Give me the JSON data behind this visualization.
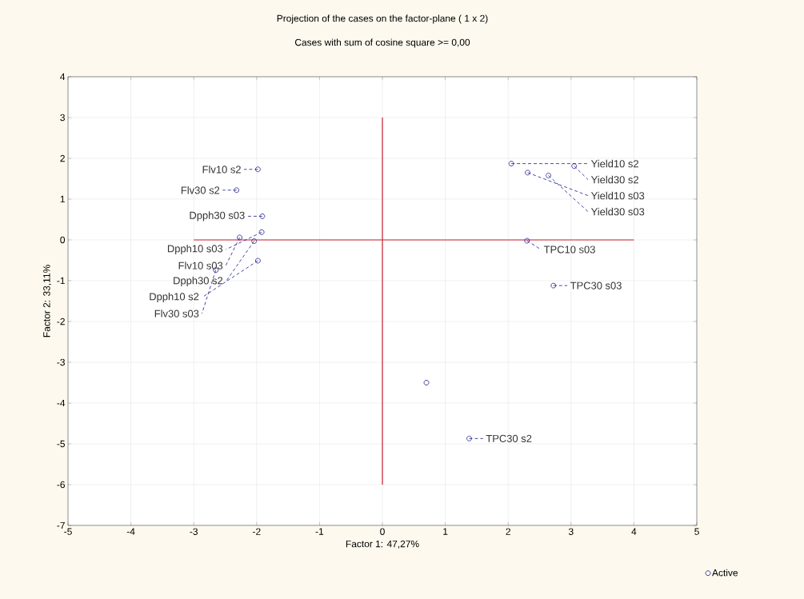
{
  "chart_data": {
    "type": "scatter",
    "title": "Projection of the cases on the factor-plane (  1 x   2)",
    "subtitle": "Cases with sum of cosine square >=  0,00",
    "xlabel": "Factor 1: 47,27%",
    "ylabel": "Factor 2: 33,11%",
    "series": [
      {
        "name": "Active",
        "color": "#1a1a8c",
        "x": [
          -1.98,
          -2.32,
          -1.91,
          -1.92,
          -2.27,
          -2.04,
          -1.98,
          -2.65,
          2.05,
          2.31,
          2.64,
          3.05,
          2.3,
          2.72,
          0.7,
          1.38
        ],
        "values": [
          1.73,
          1.22,
          0.58,
          0.19,
          0.06,
          -0.03,
          -0.51,
          -0.74,
          1.87,
          1.65,
          1.58,
          1.81,
          -0.02,
          -1.12,
          -3.5,
          -4.87
        ]
      },
      {
        "type": "line",
        "marker": "none",
        "color": "#cc2030",
        "x": [
          -3,
          4
        ],
        "values": [
          0,
          0
        ]
      },
      {
        "type": "line",
        "marker": "none",
        "color": "#cc2030",
        "x": [
          0,
          0
        ],
        "values": [
          -6,
          3
        ]
      }
    ],
    "annotations": [
      {
        "text": "Flv10 s2",
        "x": -1.98,
        "y": 1.73
      },
      {
        "text": "Flv30 s2",
        "x": -2.32,
        "y": 1.22
      },
      {
        "text": "Dpph30 s03",
        "x": -1.91,
        "y": 0.58
      },
      {
        "text": "Dpph10 s03",
        "x": -1.92,
        "y": 0.19
      },
      {
        "text": "Flv10 s03",
        "x": -2.27,
        "y": 0.06
      },
      {
        "text": "Dpph30 s2",
        "x": -2.04,
        "y": -0.03
      },
      {
        "text": "Dpph10 s2",
        "x": -1.98,
        "y": -0.51
      },
      {
        "text": "Flv30 s03",
        "x": -2.65,
        "y": -0.74
      },
      {
        "text": "Yield10 s2",
        "x": 2.05,
        "y": 1.87
      },
      {
        "text": "Yield10 s03",
        "x": 2.31,
        "y": 1.65
      },
      {
        "text": "Yield30 s03",
        "x": 2.64,
        "y": 1.58
      },
      {
        "text": "Yield30 s2",
        "x": 3.05,
        "y": 1.81
      },
      {
        "text": "TPC10 s03",
        "x": 2.3,
        "y": -0.02
      },
      {
        "text": "TPC30 s03",
        "x": 2.72,
        "y": -1.12
      },
      {
        "text": "TPC30 s2",
        "x": 1.38,
        "y": -4.87
      }
    ],
    "xlim": [
      -5,
      5
    ],
    "ylim": [
      -7,
      4
    ],
    "xticks": [
      -5,
      -4,
      -3,
      -2,
      -1,
      0,
      1,
      2,
      3,
      4,
      5
    ],
    "yticks": [
      -7,
      -6,
      -5,
      -4,
      -3,
      -2,
      -1,
      0,
      1,
      2,
      3,
      4
    ],
    "grid": true,
    "legend": "bottom right",
    "marker": "circle"
  }
}
